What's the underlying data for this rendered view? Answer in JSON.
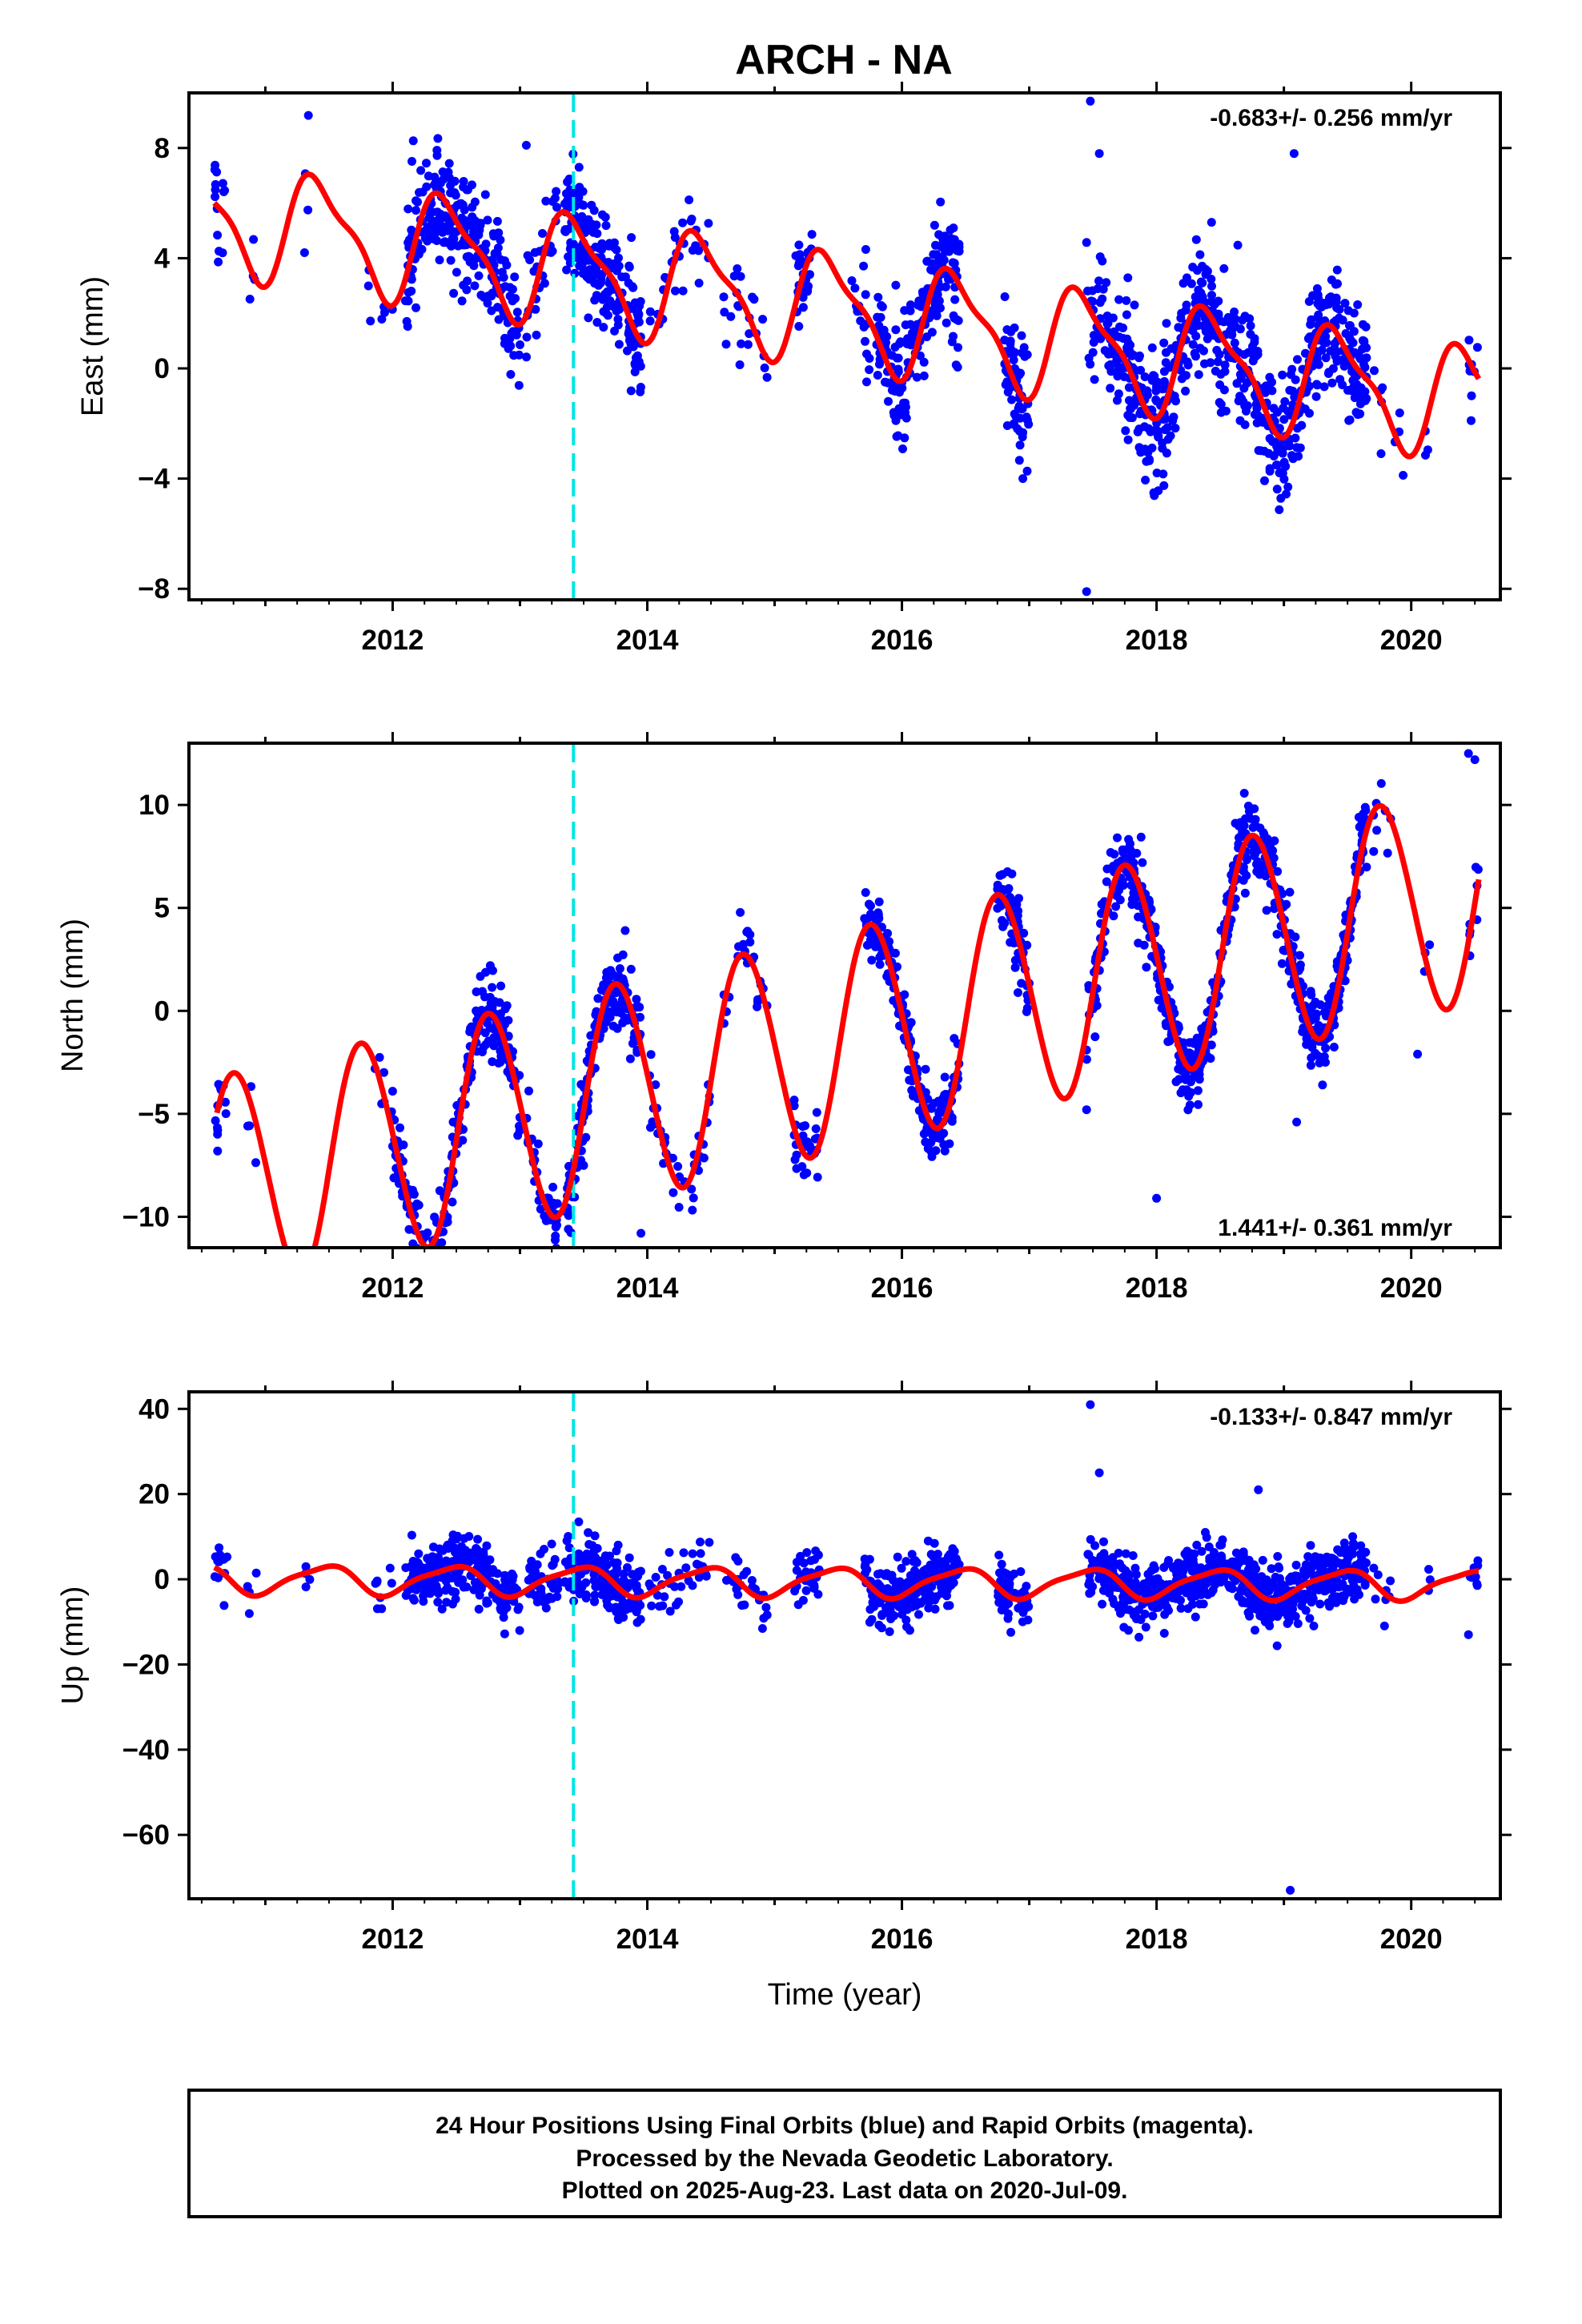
{
  "title": "ARCH - NA",
  "colors": {
    "points": "#0000ff",
    "fit": "#ff0000",
    "event": "#00e5e5"
  },
  "chart_data": [
    {
      "type": "scatter",
      "panel": "east",
      "xlabel": "",
      "ylabel": "East (mm)",
      "xlim": [
        2010.4,
        2020.7
      ],
      "ylim": [
        -8.4,
        10
      ],
      "xticks": [
        2012,
        2014,
        2016,
        2018,
        2020
      ],
      "yticks": [
        -8,
        -4,
        0,
        4,
        8
      ],
      "rate_label": "-0.683+/- 0.256 mm/yr",
      "rate_placement": "top-right",
      "event_line_x": 2013.42,
      "fit": {
        "start": 2010.6,
        "end": 2020.53,
        "offset": 5.5,
        "trend": -0.683,
        "annual_amp": 1.9,
        "annual_phase": 5.18,
        "semi_amp": 0.6,
        "semi_phase": 4.38
      },
      "scatter_model": {
        "noise_sd": 1.1,
        "seed": 11
      },
      "segments": [
        [
          2010.6,
          2010.7,
          14
        ],
        [
          2010.87,
          2010.93,
          4
        ],
        [
          2011.3,
          2011.35,
          4
        ],
        [
          2011.8,
          2011.85,
          3
        ],
        [
          2011.9,
          2012.0,
          4
        ],
        [
          2012.1,
          2013.0,
          260
        ],
        [
          2013.05,
          2013.3,
          30
        ],
        [
          2013.35,
          2013.95,
          190
        ],
        [
          2014.0,
          2014.5,
          30
        ],
        [
          2014.6,
          2014.95,
          22
        ],
        [
          2015.15,
          2015.3,
          28
        ],
        [
          2015.6,
          2015.75,
          18
        ],
        [
          2015.8,
          2016.45,
          200
        ],
        [
          2016.8,
          2016.95,
          60
        ],
        [
          2016.95,
          2017.0,
          8
        ],
        [
          2017.45,
          2017.65,
          40
        ],
        [
          2017.65,
          2019.65,
          600
        ],
        [
          2019.7,
          2019.8,
          5
        ],
        [
          2019.85,
          2019.95,
          4
        ],
        [
          2020.1,
          2020.15,
          3
        ],
        [
          2020.45,
          2020.53,
          8
        ]
      ],
      "outliers": [
        [
          2017.48,
          9.7
        ],
        [
          2017.55,
          7.8
        ],
        [
          2019.08,
          7.8
        ],
        [
          2017.45,
          -8.1
        ],
        [
          2016.95,
          -4.0
        ],
        [
          2013.05,
          8.1
        ]
      ]
    },
    {
      "type": "scatter",
      "panel": "north",
      "xlabel": "",
      "ylabel": "North (mm)",
      "xlim": [
        2010.4,
        2020.7
      ],
      "ylim": [
        -11.5,
        13
      ],
      "xticks": [
        2012,
        2014,
        2016,
        2018,
        2020
      ],
      "yticks": [
        -10,
        -5,
        0,
        5,
        10
      ],
      "rate_label": "1.441+/- 0.361 mm/yr",
      "rate_placement": "bottom-right",
      "event_line_x": 2013.42,
      "fit": {
        "start": 2010.62,
        "end": 2020.53,
        "offset": -8.5,
        "trend": 1.441,
        "annual_amp": 5.3,
        "annual_phase": 3.04,
        "semi_amp": 0.3,
        "semi_phase": 0.0
      },
      "scatter_model": {
        "noise_sd": 0.9,
        "seed": 23
      },
      "segments": [
        [
          2010.6,
          2010.7,
          12
        ],
        [
          2010.85,
          2010.93,
          4
        ],
        [
          2011.3,
          2011.4,
          6
        ],
        [
          2011.85,
          2012.0,
          8
        ],
        [
          2012.0,
          2013.0,
          240
        ],
        [
          2013.05,
          2013.3,
          40
        ],
        [
          2013.35,
          2013.95,
          170
        ],
        [
          2014.0,
          2014.5,
          40
        ],
        [
          2014.6,
          2014.95,
          25
        ],
        [
          2015.15,
          2015.35,
          30
        ],
        [
          2015.7,
          2016.45,
          220
        ],
        [
          2016.75,
          2017.0,
          70
        ],
        [
          2017.45,
          2017.65,
          45
        ],
        [
          2017.65,
          2019.65,
          620
        ],
        [
          2019.7,
          2019.85,
          8
        ],
        [
          2020.1,
          2020.15,
          3
        ],
        [
          2020.45,
          2020.53,
          8
        ]
      ],
      "outliers": [
        [
          2020.45,
          12.5
        ],
        [
          2020.5,
          12.2
        ],
        [
          2018.0,
          -9.1
        ],
        [
          2013.95,
          -10.8
        ],
        [
          2019.1,
          -5.4
        ],
        [
          2020.05,
          -2.1
        ],
        [
          2017.45,
          -4.8
        ]
      ]
    },
    {
      "type": "scatter",
      "panel": "up",
      "xlabel": "Time (year)",
      "ylabel": "Up (mm)",
      "xlim": [
        2010.4,
        2020.7
      ],
      "ylim": [
        -75,
        44
      ],
      "xticks": [
        2012,
        2014,
        2016,
        2018,
        2020
      ],
      "yticks": [
        -60,
        -40,
        -20,
        0,
        20,
        40
      ],
      "rate_label": "-0.133+/- 0.847 mm/yr",
      "rate_placement": "top-right",
      "event_line_x": 2013.42,
      "fit": {
        "start": 2010.6,
        "end": 2020.53,
        "offset": 0.0,
        "trend": -0.133,
        "annual_amp": 3.3,
        "annual_phase": 5.0,
        "semi_amp": 0.8,
        "semi_phase": 0.0
      },
      "scatter_model": {
        "noise_sd": 3.6,
        "seed": 37
      },
      "segments": [
        [
          2010.6,
          2010.7,
          12
        ],
        [
          2010.85,
          2010.93,
          4
        ],
        [
          2011.3,
          2011.35,
          4
        ],
        [
          2011.85,
          2012.0,
          8
        ],
        [
          2012.1,
          2013.0,
          240
        ],
        [
          2013.05,
          2013.3,
          40
        ],
        [
          2013.35,
          2013.95,
          170
        ],
        [
          2014.0,
          2014.5,
          35
        ],
        [
          2014.6,
          2014.95,
          25
        ],
        [
          2015.15,
          2015.35,
          30
        ],
        [
          2015.7,
          2016.45,
          220
        ],
        [
          2016.75,
          2017.0,
          70
        ],
        [
          2017.45,
          2017.65,
          45
        ],
        [
          2017.65,
          2019.65,
          620
        ],
        [
          2019.7,
          2019.85,
          8
        ],
        [
          2020.1,
          2020.15,
          3
        ],
        [
          2020.45,
          2020.53,
          8
        ]
      ],
      "outliers": [
        [
          2017.48,
          41
        ],
        [
          2017.55,
          25
        ],
        [
          2019.05,
          -73
        ],
        [
          2018.8,
          21
        ],
        [
          2020.45,
          -13
        ]
      ]
    }
  ],
  "footer": {
    "line1": "24 Hour Positions Using Final Orbits (blue) and Rapid Orbits (magenta).",
    "line2": "Processed by the Nevada Geodetic Laboratory.",
    "line3": "Plotted on 2025-Aug-23. Last data on 2020-Jul-09."
  }
}
